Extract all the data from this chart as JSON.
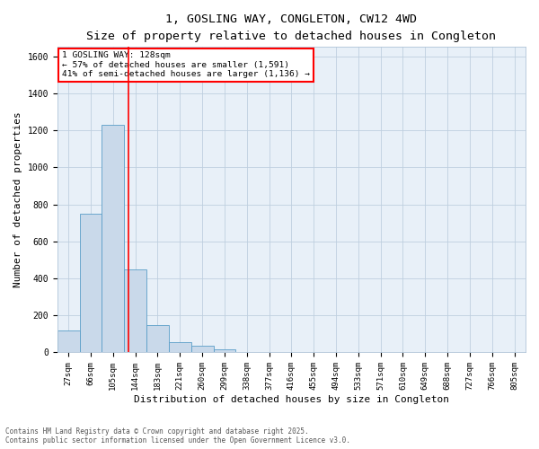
{
  "title_line1": "1, GOSLING WAY, CONGLETON, CW12 4WD",
  "title_line2": "Size of property relative to detached houses in Congleton",
  "xlabel": "Distribution of detached houses by size in Congleton",
  "ylabel": "Number of detached properties",
  "categories": [
    "27sqm",
    "66sqm",
    "105sqm",
    "144sqm",
    "183sqm",
    "221sqm",
    "260sqm",
    "299sqm",
    "338sqm",
    "377sqm",
    "416sqm",
    "455sqm",
    "494sqm",
    "533sqm",
    "571sqm",
    "610sqm",
    "649sqm",
    "688sqm",
    "727sqm",
    "766sqm",
    "805sqm"
  ],
  "values": [
    120,
    750,
    1230,
    450,
    148,
    55,
    35,
    18,
    0,
    0,
    0,
    0,
    0,
    0,
    0,
    0,
    0,
    0,
    0,
    0,
    0
  ],
  "bar_color": "#c9d9ea",
  "bar_edge_color": "#5a9ec8",
  "grid_color": "#bfcfdf",
  "background_color": "#e8f0f8",
  "annotation_text_line1": "1 GOSLING WAY: 128sqm",
  "annotation_text_line2": "← 57% of detached houses are smaller (1,591)",
  "annotation_text_line3": "41% of semi-detached houses are larger (1,136) →",
  "vline_x": 2.68,
  "ylim": [
    0,
    1650
  ],
  "yticks": [
    0,
    200,
    400,
    600,
    800,
    1000,
    1200,
    1400,
    1600
  ],
  "footnote_line1": "Contains HM Land Registry data © Crown copyright and database right 2025.",
  "footnote_line2": "Contains public sector information licensed under the Open Government Licence v3.0."
}
